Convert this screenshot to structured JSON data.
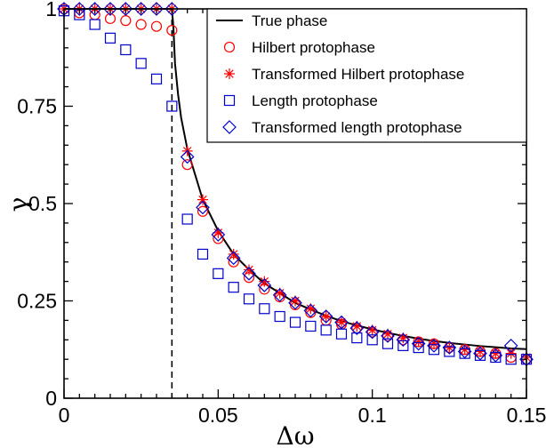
{
  "chart_data": {
    "type": "scatter",
    "xlabel": "Δω",
    "ylabel": "γ",
    "xlim": [
      0,
      0.15
    ],
    "ylim": [
      0,
      1
    ],
    "x_ticks": [
      {
        "value": 0,
        "label": "0"
      },
      {
        "value": 0.05,
        "label": "0.05"
      },
      {
        "value": 0.1,
        "label": "0.1"
      },
      {
        "value": 0.15,
        "label": "0.15"
      }
    ],
    "y_ticks": [
      {
        "value": 0,
        "label": "0"
      },
      {
        "value": 0.25,
        "label": "0.25"
      },
      {
        "value": 0.5,
        "label": "0.5"
      },
      {
        "value": 0.75,
        "label": "0.75"
      },
      {
        "value": 1,
        "label": "1"
      }
    ],
    "legend_position": "top-right",
    "vline_x": 0.035,
    "colors": {
      "true": "#000000",
      "red": "#ff0000",
      "blue": "#0000cc"
    },
    "series": [
      {
        "name": "True phase",
        "kind": "line",
        "marker": "none",
        "color": "#000000",
        "x": [
          0,
          0.005,
          0.01,
          0.015,
          0.02,
          0.025,
          0.03,
          0.035,
          0.0355,
          0.036,
          0.037,
          0.038,
          0.04,
          0.045,
          0.05,
          0.055,
          0.06,
          0.065,
          0.07,
          0.075,
          0.08,
          0.085,
          0.09,
          0.095,
          0.1,
          0.105,
          0.11,
          0.115,
          0.12,
          0.125,
          0.13,
          0.135,
          0.14,
          0.145,
          0.15
        ],
        "y": [
          1,
          1,
          1,
          1,
          1,
          1,
          1,
          1,
          0.95,
          0.86,
          0.78,
          0.72,
          0.64,
          0.51,
          0.43,
          0.37,
          0.33,
          0.295,
          0.27,
          0.245,
          0.228,
          0.212,
          0.198,
          0.187,
          0.177,
          0.168,
          0.16,
          0.153,
          0.147,
          0.142,
          0.138,
          0.134,
          0.131,
          0.128,
          0.126
        ]
      },
      {
        "name": "Hilbert protophase",
        "kind": "scatter",
        "marker": "circle",
        "color": "#ff0000",
        "x": [
          0,
          0.005,
          0.01,
          0.015,
          0.02,
          0.025,
          0.03,
          0.035,
          0.04,
          0.045,
          0.05,
          0.055,
          0.06,
          0.065,
          0.07,
          0.075,
          0.08,
          0.085,
          0.09,
          0.095,
          0.1,
          0.105,
          0.11,
          0.115,
          0.12,
          0.125,
          0.13,
          0.135,
          0.14,
          0.145,
          0.15
        ],
        "y": [
          1,
          0.99,
          0.985,
          0.975,
          0.97,
          0.96,
          0.955,
          0.945,
          0.6,
          0.48,
          0.41,
          0.35,
          0.31,
          0.28,
          0.26,
          0.24,
          0.22,
          0.2,
          0.19,
          0.18,
          0.17,
          0.16,
          0.15,
          0.145,
          0.14,
          0.13,
          0.125,
          0.12,
          0.115,
          0.105,
          0.1
        ]
      },
      {
        "name": "Transformed Hilbert protophase",
        "kind": "scatter",
        "marker": "star",
        "color": "#ff0000",
        "x": [
          0,
          0.005,
          0.01,
          0.015,
          0.02,
          0.025,
          0.03,
          0.035,
          0.04,
          0.045,
          0.05,
          0.055,
          0.06,
          0.065,
          0.07,
          0.075,
          0.08,
          0.085,
          0.09,
          0.095,
          0.1,
          0.105,
          0.11,
          0.115,
          0.12,
          0.125,
          0.13,
          0.135,
          0.14,
          0.145,
          0.15
        ],
        "y": [
          1,
          1,
          1,
          1,
          1,
          1,
          1,
          1,
          0.635,
          0.51,
          0.425,
          0.37,
          0.33,
          0.3,
          0.27,
          0.25,
          0.23,
          0.21,
          0.195,
          0.185,
          0.175,
          0.165,
          0.155,
          0.145,
          0.14,
          0.13,
          0.125,
          0.12,
          0.115,
          0.115,
          0.105
        ]
      },
      {
        "name": "Length protophase",
        "kind": "scatter",
        "marker": "square",
        "color": "#0000cc",
        "x": [
          0,
          0.005,
          0.01,
          0.015,
          0.02,
          0.025,
          0.03,
          0.035,
          0.04,
          0.045,
          0.05,
          0.055,
          0.06,
          0.065,
          0.07,
          0.075,
          0.08,
          0.085,
          0.09,
          0.095,
          0.1,
          0.105,
          0.11,
          0.115,
          0.12,
          0.125,
          0.13,
          0.135,
          0.14,
          0.145,
          0.15
        ],
        "y": [
          0.995,
          0.985,
          0.96,
          0.925,
          0.895,
          0.86,
          0.82,
          0.75,
          0.46,
          0.37,
          0.32,
          0.285,
          0.255,
          0.23,
          0.21,
          0.195,
          0.185,
          0.175,
          0.165,
          0.155,
          0.15,
          0.14,
          0.135,
          0.13,
          0.125,
          0.12,
          0.115,
          0.11,
          0.105,
          0.1,
          0.1
        ]
      },
      {
        "name": "Transformed length protophase",
        "kind": "scatter",
        "marker": "diamond",
        "color": "#0000cc",
        "x": [
          0,
          0.005,
          0.01,
          0.015,
          0.02,
          0.025,
          0.03,
          0.035,
          0.04,
          0.045,
          0.05,
          0.055,
          0.06,
          0.065,
          0.07,
          0.075,
          0.08,
          0.085,
          0.09,
          0.095,
          0.1,
          0.105,
          0.11,
          0.115,
          0.12,
          0.125,
          0.13,
          0.135,
          0.14,
          0.145,
          0.15
        ],
        "y": [
          1,
          1,
          1,
          1,
          1,
          1,
          1,
          1,
          0.62,
          0.49,
          0.42,
          0.36,
          0.32,
          0.29,
          0.265,
          0.245,
          0.225,
          0.21,
          0.195,
          0.18,
          0.17,
          0.16,
          0.15,
          0.14,
          0.135,
          0.13,
          0.12,
          0.115,
          0.11,
          0.135,
          0.1
        ]
      }
    ]
  }
}
